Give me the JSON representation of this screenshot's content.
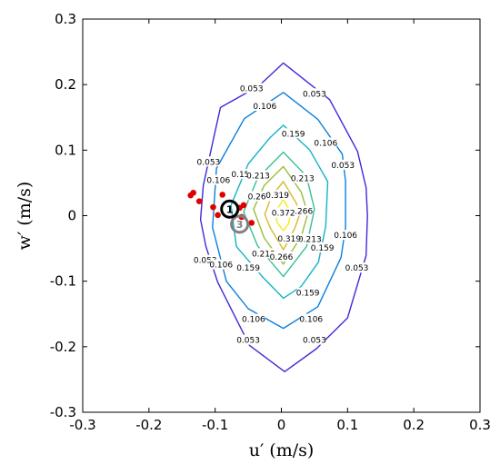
{
  "chart_data": {
    "type": "contour",
    "xlabel": "u′ (m/s)",
    "ylabel": "w′ (m/s)",
    "xlim": [
      -0.3,
      0.3
    ],
    "ylim": [
      -0.3,
      0.3
    ],
    "xticks": [
      "-0.3",
      "-0.2",
      "-0.1",
      "0",
      "0.1",
      "0.2",
      "0.3"
    ],
    "yticks": [
      "-0.3",
      "-0.2",
      "-0.1",
      "0",
      "0.1",
      "0.2",
      "0.3"
    ],
    "grid": false,
    "contours": [
      {
        "level": "0.053",
        "color": "#3d2bd8",
        "points": [
          [
            0.003,
            0.233
          ],
          [
            0.073,
            0.177
          ],
          [
            0.115,
            0.098
          ],
          [
            0.128,
            0.043
          ],
          [
            0.13,
            0.0
          ],
          [
            0.128,
            -0.061
          ],
          [
            0.1,
            -0.156
          ],
          [
            0.053,
            -0.203
          ],
          [
            0.005,
            -0.238
          ],
          [
            -0.048,
            -0.198
          ],
          [
            -0.096,
            -0.102
          ],
          [
            -0.114,
            -0.047
          ],
          [
            -0.122,
            -0.006
          ],
          [
            -0.118,
            0.046
          ],
          [
            -0.101,
            0.124
          ],
          [
            -0.092,
            0.165
          ],
          [
            -0.034,
            0.198
          ]
        ],
        "labels": [
          {
            "text": "0.053",
            "x": -0.045,
            "y": 0.194
          },
          {
            "text": "0.053",
            "x": 0.05,
            "y": 0.186
          },
          {
            "text": "0.053",
            "x": -0.11,
            "y": 0.082
          },
          {
            "text": "0.053",
            "x": 0.093,
            "y": 0.077
          },
          {
            "text": "0.053",
            "x": -0.115,
            "y": -0.068
          },
          {
            "text": "0.053",
            "x": 0.114,
            "y": -0.08
          },
          {
            "text": "0.053",
            "x": -0.05,
            "y": -0.19
          },
          {
            "text": "0.053",
            "x": 0.05,
            "y": -0.19
          }
        ]
      },
      {
        "level": "0.106",
        "color": "#0c7fdc",
        "points": [
          [
            0.003,
            0.188
          ],
          [
            0.055,
            0.147
          ],
          [
            0.092,
            0.094
          ],
          [
            0.097,
            0.053
          ],
          [
            0.097,
            -0.018
          ],
          [
            0.09,
            -0.064
          ],
          [
            0.055,
            -0.139
          ],
          [
            0.003,
            -0.172
          ],
          [
            -0.05,
            -0.142
          ],
          [
            -0.083,
            -0.1
          ],
          [
            -0.104,
            -0.018
          ],
          [
            -0.098,
            0.072
          ],
          [
            -0.056,
            0.148
          ]
        ],
        "labels": [
          {
            "text": "0.106",
            "x": -0.025,
            "y": 0.167
          },
          {
            "text": "0.106",
            "x": 0.067,
            "y": 0.111
          },
          {
            "text": "0.106",
            "x": -0.095,
            "y": 0.054
          },
          {
            "text": "0.106",
            "x": 0.097,
            "y": -0.03
          },
          {
            "text": "0.106",
            "x": -0.091,
            "y": -0.075
          },
          {
            "text": "0.106",
            "x": 0.045,
            "y": -0.158
          },
          {
            "text": "0.106",
            "x": -0.042,
            "y": -0.158
          }
        ]
      },
      {
        "level": "0.159",
        "color": "#10b4c8",
        "points": [
          [
            0.003,
            0.138
          ],
          [
            0.043,
            0.1
          ],
          [
            0.07,
            0.052
          ],
          [
            0.067,
            -0.016
          ],
          [
            0.056,
            -0.071
          ],
          [
            0.03,
            -0.108
          ],
          [
            0.003,
            -0.126
          ],
          [
            -0.028,
            -0.094
          ],
          [
            -0.068,
            -0.047
          ],
          [
            -0.076,
            0.016
          ],
          [
            -0.05,
            0.079
          ],
          [
            -0.018,
            0.118
          ]
        ],
        "labels": [
          {
            "text": "0.159",
            "x": 0.018,
            "y": 0.125
          },
          {
            "text": "0.159",
            "x": -0.058,
            "y": 0.063
          },
          {
            "text": "0.159",
            "x": 0.062,
            "y": -0.049
          },
          {
            "text": "0.159",
            "x": -0.05,
            "y": -0.08
          },
          {
            "text": "0.159",
            "x": 0.04,
            "y": -0.118
          }
        ]
      },
      {
        "level": "0.213",
        "color": "#37c197",
        "points": [
          [
            0.003,
            0.097
          ],
          [
            0.038,
            0.06
          ],
          [
            0.05,
            0.01
          ],
          [
            0.038,
            -0.047
          ],
          [
            0.003,
            -0.093
          ],
          [
            -0.036,
            -0.046
          ],
          [
            -0.057,
            0.006
          ],
          [
            -0.036,
            0.057
          ]
        ],
        "labels": [
          {
            "text": "0.213",
            "x": -0.035,
            "y": 0.061
          },
          {
            "text": "0.213",
            "x": 0.032,
            "y": 0.057
          },
          {
            "text": "0.213",
            "x": 0.043,
            "y": -0.036
          },
          {
            "text": "0.213",
            "x": -0.027,
            "y": -0.058
          }
        ]
      },
      {
        "level": "0.266",
        "color": "#9abe3a",
        "points": [
          [
            0.003,
            0.075
          ],
          [
            0.03,
            0.036
          ],
          [
            0.04,
            0.003
          ],
          [
            0.03,
            -0.032
          ],
          [
            0.003,
            -0.074
          ],
          [
            -0.026,
            -0.034
          ],
          [
            -0.042,
            0.01
          ],
          [
            -0.026,
            0.046
          ]
        ],
        "labels": [
          {
            "text": "0.266",
            "x": -0.033,
            "y": 0.029
          },
          {
            "text": "0.266",
            "x": 0.03,
            "y": 0.007
          },
          {
            "text": "0.266",
            "x": 0.0,
            "y": -0.063
          }
        ]
      },
      {
        "level": "0.319",
        "color": "#d8b92b",
        "points": [
          [
            0.003,
            0.052
          ],
          [
            0.023,
            0.018
          ],
          [
            0.027,
            0.0
          ],
          [
            0.02,
            -0.02
          ],
          [
            0.003,
            -0.052
          ],
          [
            -0.017,
            -0.018
          ],
          [
            -0.025,
            0.002
          ],
          [
            -0.015,
            0.03
          ]
        ],
        "labels": [
          {
            "text": "0.319",
            "x": -0.006,
            "y": 0.031
          },
          {
            "text": "0.319",
            "x": 0.012,
            "y": -0.035
          }
        ]
      },
      {
        "level": "0.372",
        "color": "#f5ec16",
        "points": [
          [
            0.003,
            0.025
          ],
          [
            0.014,
            0.005
          ],
          [
            0.011,
            -0.012
          ],
          [
            0.003,
            -0.023
          ],
          [
            -0.006,
            -0.011
          ],
          [
            -0.01,
            0.004
          ]
        ],
        "labels": [
          {
            "text": "0.372",
            "x": 0.003,
            "y": 0.004
          }
        ]
      }
    ],
    "scatter": {
      "color": "#e00000",
      "points": [
        [
          -0.133,
          0.035
        ],
        [
          -0.137,
          0.031
        ],
        [
          -0.124,
          0.022
        ],
        [
          -0.103,
          0.013
        ],
        [
          -0.089,
          0.032
        ],
        [
          -0.096,
          0.001
        ],
        [
          -0.063,
          0.012
        ],
        [
          -0.057,
          0.016
        ],
        [
          -0.045,
          -0.011
        ],
        [
          -0.06,
          -0.002
        ]
      ]
    },
    "markers": [
      {
        "label": "1",
        "x": -0.078,
        "y": 0.01,
        "color": "#000000"
      },
      {
        "label": "3",
        "x": -0.063,
        "y": -0.013,
        "color": "#808080"
      }
    ]
  }
}
